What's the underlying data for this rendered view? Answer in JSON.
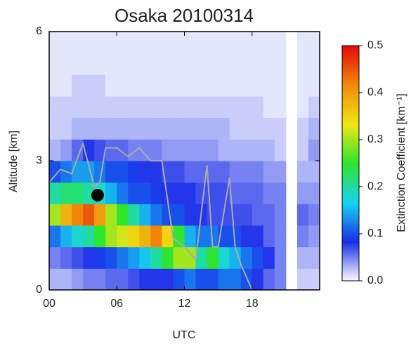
{
  "chart_data": {
    "type": "heatmap",
    "title": "Osaka 20100314",
    "x_label": "UTC",
    "y_label": "Altitude [km]",
    "xlim": [
      0,
      24
    ],
    "xticks": [
      {
        "value": 0,
        "label": "00"
      },
      {
        "value": 6,
        "label": "06"
      },
      12,
      18
    ],
    "ylim": [
      0,
      6
    ],
    "yticks": [
      0,
      3,
      6
    ],
    "x": [
      0,
      1,
      2,
      3,
      4,
      5,
      6,
      7,
      8,
      9,
      10,
      11,
      12,
      13,
      14,
      15,
      16,
      17,
      18,
      19,
      20,
      21,
      22,
      23
    ],
    "y": [
      0,
      0.5,
      1,
      1.5,
      2,
      2.5,
      3,
      3.5,
      4,
      4.5,
      5,
      5.5
    ],
    "z": [
      [
        0.03,
        0.03,
        0.04,
        0.05,
        0.05,
        0.06,
        0.06,
        0.07,
        0.08,
        0.08,
        0.08,
        0.1,
        0.12,
        0.1,
        0.1,
        0.12,
        0.12,
        0.1,
        0.08,
        0.06,
        0.05,
        null,
        0.02,
        0.02
      ],
      [
        0.05,
        0.06,
        0.07,
        0.08,
        0.09,
        0.1,
        0.12,
        0.14,
        0.16,
        0.2,
        0.25,
        0.3,
        0.3,
        0.2,
        0.25,
        0.18,
        0.15,
        0.12,
        0.1,
        0.08,
        0.05,
        null,
        0.03,
        0.03
      ],
      [
        0.12,
        0.15,
        0.18,
        0.2,
        0.25,
        0.3,
        0.32,
        0.35,
        0.38,
        0.42,
        0.35,
        0.25,
        0.15,
        0.12,
        0.12,
        0.1,
        0.1,
        0.08,
        0.08,
        0.06,
        0.05,
        null,
        0.05,
        0.04
      ],
      [
        0.3,
        0.38,
        0.42,
        0.45,
        0.4,
        0.3,
        0.25,
        0.2,
        0.15,
        0.12,
        0.1,
        0.1,
        0.08,
        0.08,
        0.07,
        0.07,
        0.07,
        0.07,
        0.06,
        0.06,
        0.05,
        null,
        0.06,
        0.05
      ],
      [
        0.2,
        0.22,
        0.22,
        0.2,
        0.18,
        0.15,
        0.12,
        0.1,
        0.1,
        0.09,
        0.08,
        0.08,
        0.08,
        0.07,
        0.07,
        0.07,
        0.06,
        0.06,
        0.06,
        0.05,
        0.05,
        null,
        0.04,
        0.04
      ],
      [
        0.1,
        0.12,
        0.14,
        0.14,
        0.12,
        0.1,
        0.1,
        0.09,
        0.08,
        0.08,
        0.07,
        0.07,
        0.06,
        0.06,
        0.06,
        0.06,
        0.05,
        0.05,
        0.05,
        0.04,
        0.04,
        null,
        0.03,
        0.03
      ],
      [
        0.03,
        0.04,
        0.06,
        0.08,
        0.07,
        0.06,
        0.06,
        0.05,
        0.05,
        0.05,
        0.04,
        0.04,
        0.04,
        0.04,
        0.04,
        0.03,
        0.03,
        0.03,
        0.03,
        0.03,
        0.02,
        null,
        0.02,
        0.04
      ],
      [
        0.02,
        0.02,
        0.03,
        0.03,
        0.03,
        0.03,
        0.03,
        0.03,
        0.03,
        0.03,
        0.03,
        0.03,
        0.03,
        0.03,
        0.03,
        0.03,
        0.02,
        0.02,
        0.02,
        0.02,
        0.02,
        null,
        0.02,
        0.03
      ],
      [
        0.02,
        0.02,
        0.02,
        0.02,
        0.02,
        0.02,
        0.02,
        0.02,
        0.02,
        0.02,
        0.02,
        0.02,
        0.02,
        0.02,
        0.02,
        0.02,
        0.02,
        0.02,
        0.02,
        0.01,
        0.01,
        null,
        0.01,
        0.02
      ],
      [
        0.01,
        0.01,
        0.02,
        0.02,
        0.02,
        0.01,
        0.01,
        0.01,
        0.01,
        0.01,
        0.01,
        0.01,
        0.01,
        0.01,
        0.01,
        0.01,
        0.01,
        0.01,
        0.01,
        0.01,
        0.01,
        null,
        0.01,
        0.01
      ],
      [
        0.01,
        0.01,
        0.01,
        0.01,
        0.01,
        0.01,
        0.01,
        0.01,
        0.01,
        0.01,
        0.01,
        0.01,
        0.01,
        0.01,
        0.01,
        0.01,
        0.01,
        0.01,
        0.01,
        0.01,
        0.01,
        null,
        0.01,
        0.01
      ],
      [
        0.01,
        0.01,
        0.01,
        0.01,
        0.01,
        0.01,
        0.01,
        0.01,
        0.01,
        0.01,
        0.01,
        0.01,
        0.01,
        0.01,
        0.01,
        0.01,
        0.01,
        0.01,
        0.01,
        0.01,
        0.01,
        null,
        0.01,
        0.01
      ]
    ],
    "zlim": [
      0,
      0.5
    ],
    "zticks": [
      {
        "value": 0,
        "label": "0.0"
      },
      0.1,
      0.2,
      0.3,
      0.4,
      0.5
    ],
    "colorbar_label": "Extinction Coefficient [km⁻¹]",
    "colors": [
      "#ffffff",
      "#1a2ee8",
      "#16d4f0",
      "#2ee62e",
      "#f0e614",
      "#f08a0a",
      "#e60a0a"
    ],
    "line": {
      "color": "#aaaaaa",
      "x": [
        0,
        1,
        2,
        3,
        4,
        4.5,
        5,
        6,
        7,
        8,
        9,
        10,
        11,
        12,
        13,
        14,
        14.5,
        15,
        16,
        16.5,
        17,
        18
      ],
      "y": [
        2.5,
        2.8,
        2.7,
        3.4,
        2.4,
        2.5,
        3.3,
        3.3,
        3.1,
        3.3,
        3.0,
        3.0,
        1.2,
        1.0,
        0.7,
        2.9,
        1.0,
        1.0,
        2.6,
        1.0,
        0.6,
        0
      ]
    },
    "marker": {
      "x": 4.3,
      "y": 2.2,
      "color": "#000000"
    }
  }
}
